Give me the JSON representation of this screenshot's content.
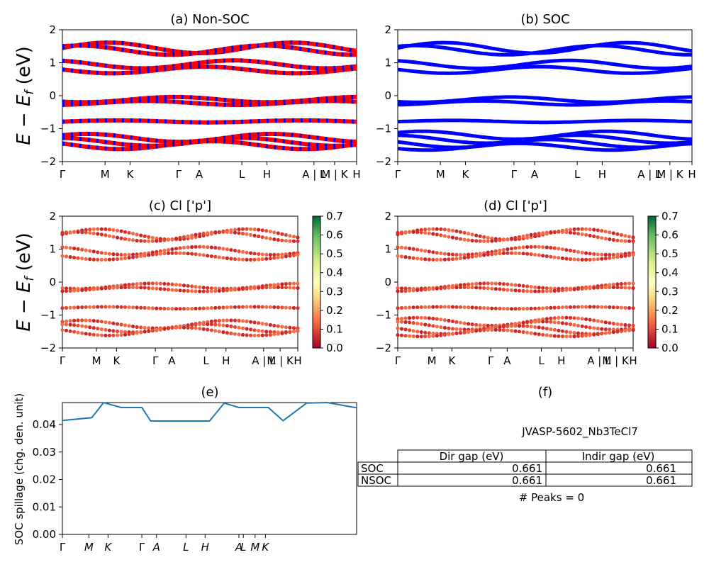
{
  "panels": {
    "a_title": "(a) Non-SOC",
    "b_title": "(b) SOC",
    "c_title": "(c)  Cl ['p']",
    "d_title": "(d) Cl ['p']",
    "e_title": "(e)",
    "f_title": "(f)"
  },
  "y_axis_label": "E − E_f (eV)",
  "spillage_axis_label": "SOC spillage (chg. den. unit)",
  "kpath_labels": [
    "Γ",
    "M",
    "K",
    "Γ",
    "A",
    "L",
    "H",
    "A | L",
    "M | K",
    "H"
  ],
  "kpath_labels_ab": [
    "Γ",
    "M",
    "K",
    "Γ",
    "A",
    "L",
    "H",
    "A | L",
    "M | K",
    "H"
  ],
  "colorbar_ticks": [
    "0.0",
    "0.1",
    "0.2",
    "0.3",
    "0.4",
    "0.5",
    "0.6",
    "0.7"
  ],
  "colors": {
    "nonsoc_a": "#ff0000",
    "nonsoc_b": "#0000ff",
    "soc": "#0000ff",
    "spillage": "#1f77b4"
  },
  "table": {
    "title": "JVASP-5602_Nb3TeCl7",
    "headers": [
      "",
      "Dir gap (eV)",
      "Indir gap (eV)"
    ],
    "rows": [
      [
        "SOC",
        "0.661",
        "0.661"
      ],
      [
        "NSOC",
        "0.661",
        "0.661"
      ]
    ],
    "peaks": "# Peaks = 0"
  },
  "chart_data": [
    {
      "type": "line",
      "title": "(a) Non-SOC",
      "ylabel": "E − E_f (eV)",
      "ylim": [
        -2,
        2
      ],
      "yticks": [
        -2,
        -1,
        0,
        1,
        2
      ],
      "bands": [
        1.45,
        1.38,
        0.95,
        0.78,
        -0.12,
        -0.22,
        -0.78,
        -1.28,
        -1.4,
        -1.5
      ]
    },
    {
      "type": "line",
      "title": "(b) SOC",
      "ylim": [
        -2,
        2
      ],
      "yticks": [
        -2,
        -1,
        0,
        1,
        2
      ],
      "bands": [
        1.45,
        1.38,
        0.95,
        0.78,
        -0.12,
        -0.22,
        -0.78,
        -1.2,
        -1.32,
        -1.45,
        -1.55
      ]
    },
    {
      "type": "scatter",
      "title": "(c)  Cl ['p']",
      "ylabel": "E − E_f (eV)",
      "ylim": [
        -2,
        2
      ],
      "colorbar_range": [
        0.0,
        0.7
      ]
    },
    {
      "type": "scatter",
      "title": "(d) Cl ['p']",
      "ylim": [
        -2,
        2
      ],
      "colorbar_range": [
        0.0,
        0.7
      ]
    },
    {
      "type": "line",
      "title": "(e)",
      "ylabel": "SOC spillage (chg. den. unit)",
      "ylim": [
        0.0,
        0.048
      ],
      "yticks": [
        "0.00",
        "0.01",
        "0.02",
        "0.03",
        "0.04"
      ],
      "x": [
        0,
        0.1,
        0.14,
        0.2,
        0.27,
        0.3,
        0.35,
        0.42,
        0.5,
        0.55,
        0.6,
        0.7,
        0.75,
        0.83,
        0.9,
        1.0
      ],
      "values": [
        0.0415,
        0.0425,
        0.048,
        0.0462,
        0.0462,
        0.0413,
        0.0413,
        0.0413,
        0.0413,
        0.0478,
        0.0462,
        0.0462,
        0.0414,
        0.0478,
        0.048,
        0.0461
      ]
    }
  ]
}
